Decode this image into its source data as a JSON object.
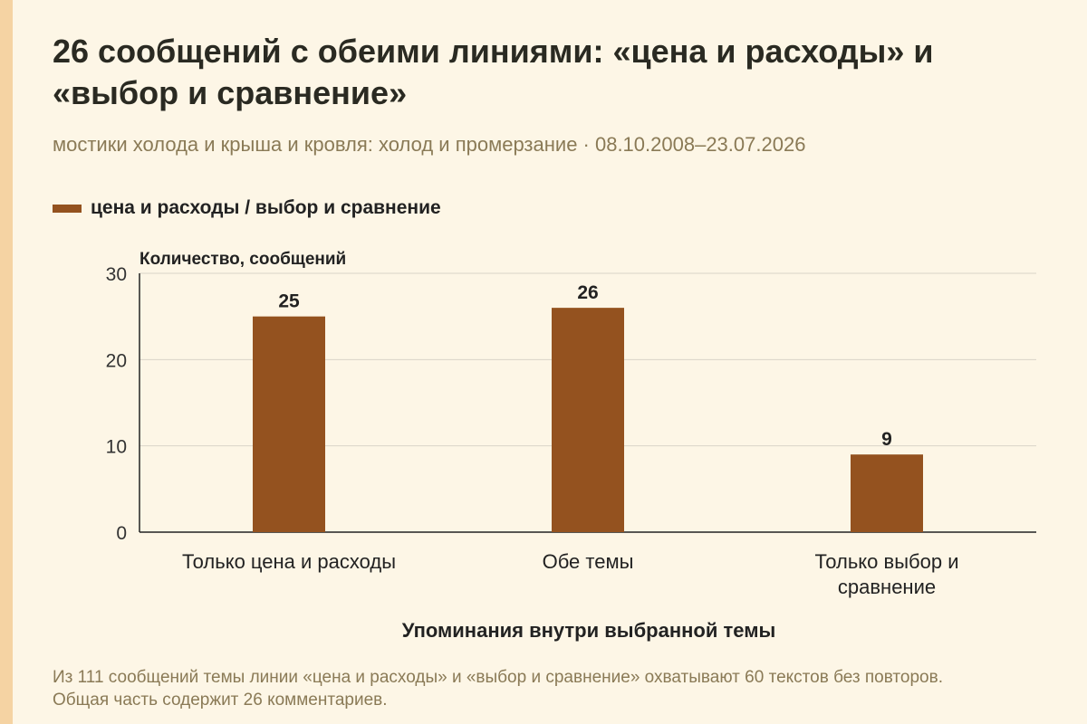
{
  "title": "26 сообщений с обеими линиями: «цена и расходы» и «выбор и сравнение»",
  "subtitle": "мостики холода и крыша и кровля: холод и промерзание · 08.10.2008–23.07.2026",
  "footnote": "Из 111 сообщений темы линии «цена и расходы» и «выбор и сравнение» охватывают 60 текстов без повторов. Общая часть содержит 26 комментариев.",
  "colors": {
    "bar": "#94521f",
    "accent_strip": "#f5d3a3",
    "background": "#fdf6e6",
    "grid": "#d9d4c8",
    "axis": "#222222"
  },
  "chart_data": {
    "type": "bar",
    "categories": [
      "Только цена и расходы",
      "Обе темы",
      "Только выбор и сравнение"
    ],
    "series": [
      {
        "name": "цена и расходы / выбор и сравнение",
        "values": [
          25,
          26,
          9
        ]
      }
    ],
    "ylabel": "Количество, сообщений",
    "xlabel": "Упоминания внутри выбранной темы",
    "ylim": [
      0,
      30
    ],
    "yticks": [
      0,
      10,
      20,
      30
    ],
    "grid": true,
    "data_labels": true,
    "legend_position": "top-left"
  }
}
